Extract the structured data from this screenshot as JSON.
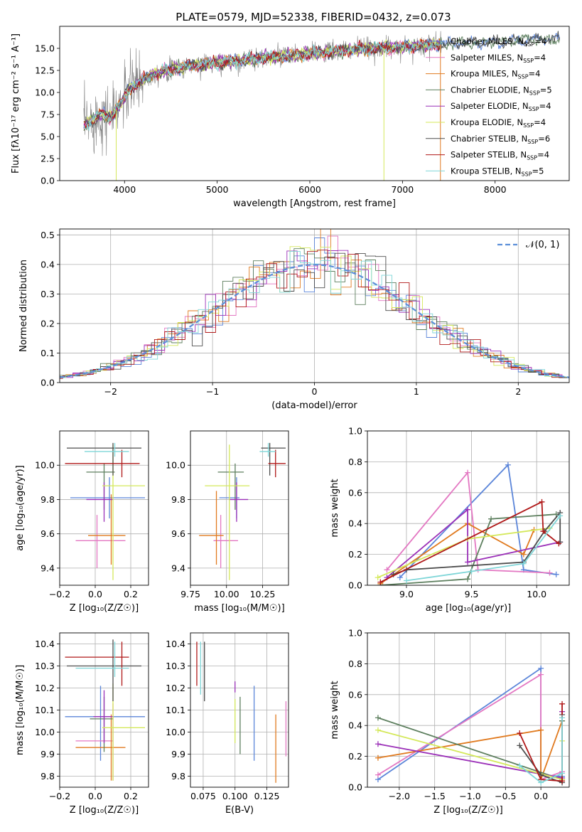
{
  "figure": {
    "title": "PLATE=0579, MJD=52338, FIBERID=0432, z=0.073"
  },
  "colors": {
    "Chabrier MILES": "#5b85d9",
    "Salpeter MILES": "#e377c2",
    "Kroupa MILES": "#e07a1f",
    "Chabrier ELODIE": "#5d7f5e",
    "Salpeter ELODIE": "#9b30b8",
    "Kroupa ELODIE": "#d4e85a",
    "Chabrier STELIB": "#4d4d4d",
    "Salpeter STELIB": "#b01818",
    "Kroupa STELIB": "#7fd6d8",
    "normal": "#5b8fd9",
    "data": "#808080"
  },
  "chart_data": [
    {
      "id": "spectrum",
      "type": "line",
      "title": "PLATE=0579, MJD=52338, FIBERID=0432, z=0.073",
      "xlabel": "wavelength [Angstrom, rest frame]",
      "ylabel": "Flux [fλ10⁻¹⁷ erg cm⁻² s⁻¹ A⁻¹]",
      "xlim": [
        3300,
        8800
      ],
      "ylim": [
        0,
        17.5
      ],
      "xticks": [
        "4000",
        "5000",
        "6000",
        "7000",
        "8000"
      ],
      "yticks": [
        "0.0",
        "2.5",
        "5.0",
        "7.5",
        "10.0",
        "12.5",
        "15.0"
      ],
      "legend_position": "right",
      "series": [
        {
          "name": "Chabrier MILES, N_SSP=4",
          "key": "Chabrier MILES"
        },
        {
          "name": "Salpeter MILES, N_SSP=4",
          "key": "Salpeter MILES"
        },
        {
          "name": "Kroupa MILES, N_SSP=4",
          "key": "Kroupa MILES"
        },
        {
          "name": "Chabrier ELODIE, N_SSP=5",
          "key": "Chabrier ELODIE"
        },
        {
          "name": "Salpeter ELODIE, N_SSP=4",
          "key": "Salpeter ELODIE"
        },
        {
          "name": "Kroupa ELODIE, N_SSP=4",
          "key": "Kroupa ELODIE"
        },
        {
          "name": "Chabrier STELIB, N_SSP=6",
          "key": "Chabrier STELIB"
        },
        {
          "name": "Salpeter STELIB, N_SSP=4",
          "key": "Salpeter STELIB"
        },
        {
          "name": "Kroupa STELIB, N_SSP=5",
          "key": "Kroupa STELIB"
        }
      ],
      "continuum": {
        "x": [
          3550,
          3650,
          3750,
          3850,
          3950,
          4050,
          4150,
          4300,
          4500,
          4700,
          4900,
          5100,
          5300,
          5500,
          5700,
          5900,
          6100,
          6300,
          6500,
          6700,
          6900,
          7100,
          7300,
          7500,
          7700,
          7900,
          8100,
          8300,
          8500,
          8700
        ],
        "y": [
          6.2,
          6.8,
          7.6,
          7.2,
          8.6,
          10.4,
          11.2,
          12.0,
          12.6,
          13.0,
          13.3,
          13.5,
          13.7,
          13.9,
          14.1,
          14.3,
          14.5,
          14.7,
          14.9,
          15.0,
          15.1,
          15.2,
          15.4,
          15.5,
          15.6,
          15.7,
          15.8,
          15.9,
          16.0,
          16.1
        ]
      }
    },
    {
      "id": "residuals",
      "type": "histogram",
      "xlabel": "(data-model)/error",
      "ylabel": "Normed distribution",
      "xlim": [
        -2.5,
        2.5
      ],
      "ylim": [
        0,
        0.52
      ],
      "xticks": [
        "−2",
        "−1",
        "0",
        "1",
        "2"
      ],
      "yticks": [
        "0.0",
        "0.1",
        "0.2",
        "0.3",
        "0.4",
        "0.5"
      ],
      "legend": "𝒩(0, 1)",
      "legend_position": "top-right",
      "reference_curve": "standard normal N(0,1)"
    },
    {
      "id": "age-vs-Z",
      "type": "errorbar",
      "xlabel": "Z [log₁₀(Z/Z☉)]",
      "ylabel": "age  [log₁₀(age/yr)]",
      "xlim": [
        -0.2,
        0.3
      ],
      "ylim": [
        9.3,
        10.2
      ],
      "xticks": [
        "−0.2",
        "0.0",
        "0.2"
      ],
      "yticks": [
        "9.4",
        "9.6",
        "9.8",
        "10.0"
      ],
      "points": [
        {
          "key": "Chabrier MILES",
          "x": 0.08,
          "xerr": [
            0.22,
            0.2
          ],
          "y": 9.81,
          "yerr": [
            0.12,
            0.12
          ]
        },
        {
          "key": "Salpeter MILES",
          "x": 0.01,
          "xerr": [
            0.12,
            0.16
          ],
          "y": 9.56,
          "yerr": [
            0.16,
            0.15
          ]
        },
        {
          "key": "Kroupa MILES",
          "x": 0.09,
          "xerr": [
            0.13,
            0.08
          ],
          "y": 9.59,
          "yerr": [
            0.17,
            0.24
          ]
        },
        {
          "key": "Chabrier ELODIE",
          "x": 0.05,
          "xerr": [
            0.1,
            0.06
          ],
          "y": 9.96,
          "yerr": [
            0.22,
            0.05
          ]
        },
        {
          "key": "Salpeter ELODIE",
          "x": 0.05,
          "xerr": [
            0.1,
            0.05
          ],
          "y": 9.8,
          "yerr": [
            0.13,
            0.1
          ]
        },
        {
          "key": "Kroupa ELODIE",
          "x": 0.1,
          "xerr": [
            0.06,
            0.18
          ],
          "y": 9.88,
          "yerr": [
            0.55,
            0.24
          ]
        },
        {
          "key": "Chabrier STELIB",
          "x": 0.1,
          "xerr": [
            0.26,
            0.16
          ],
          "y": 10.1,
          "yerr": [
            0.16,
            0.03
          ]
        },
        {
          "key": "Salpeter STELIB",
          "x": 0.15,
          "xerr": [
            0.32,
            0.1
          ],
          "y": 10.01,
          "yerr": [
            0.08,
            0.08
          ]
        },
        {
          "key": "Kroupa STELIB",
          "x": 0.11,
          "xerr": [
            0.17,
            0.08
          ],
          "y": 10.08,
          "yerr": [
            0.03,
            0.05
          ]
        }
      ]
    },
    {
      "id": "age-vs-mass",
      "type": "errorbar",
      "xlabel": "mass [log₁₀(M/M☉)]",
      "xlim": [
        9.75,
        10.43
      ],
      "ylim": [
        9.3,
        10.2
      ],
      "xticks": [
        "9.75",
        "10.00",
        "10.25"
      ],
      "yticks": [
        "9.4",
        "9.6",
        "9.8",
        "10.0"
      ],
      "points": [
        {
          "key": "Chabrier MILES",
          "x": 10.07,
          "xerr": [
            0.12,
            0.02
          ],
          "y": 9.81,
          "yerr": [
            0.12,
            0.12
          ]
        },
        {
          "key": "Salpeter MILES",
          "x": 9.96,
          "xerr": [
            0.05,
            0.12
          ],
          "y": 9.56,
          "yerr": [
            0.16,
            0.15
          ]
        },
        {
          "key": "Kroupa MILES",
          "x": 9.93,
          "xerr": [
            0.12,
            0.05
          ],
          "y": 9.59,
          "yerr": [
            0.17,
            0.26
          ]
        },
        {
          "key": "Chabrier ELODIE",
          "x": 10.06,
          "xerr": [
            0.12,
            0.06
          ],
          "y": 9.96,
          "yerr": [
            0.22,
            0.05
          ]
        },
        {
          "key": "Salpeter ELODIE",
          "x": 10.07,
          "xerr": [
            0.05,
            0.08
          ],
          "y": 9.8,
          "yerr": [
            0.13,
            0.1
          ]
        },
        {
          "key": "Kroupa ELODIE",
          "x": 10.02,
          "xerr": [
            0.17,
            0.14
          ],
          "y": 9.88,
          "yerr": [
            0.55,
            0.24
          ]
        },
        {
          "key": "Chabrier STELIB",
          "x": 10.3,
          "xerr": [
            0.06,
            0.11
          ],
          "y": 10.1,
          "yerr": [
            0.16,
            0.03
          ]
        },
        {
          "key": "Salpeter STELIB",
          "x": 10.34,
          "xerr": [
            0.05,
            0.07
          ],
          "y": 10.01,
          "yerr": [
            0.08,
            0.08
          ]
        },
        {
          "key": "Kroupa STELIB",
          "x": 10.29,
          "xerr": [
            0.06,
            0.05
          ],
          "y": 10.08,
          "yerr": [
            0.03,
            0.05
          ]
        }
      ]
    },
    {
      "id": "weight-vs-age",
      "type": "line",
      "xlabel": "age  [log₁₀(age/yr)]",
      "ylabel": "mass weight",
      "xlim": [
        8.7,
        10.25
      ],
      "ylim": [
        0,
        1
      ],
      "xticks": [
        "9.0",
        "9.5",
        "10.0"
      ],
      "yticks": [
        "0.0",
        "0.2",
        "0.4",
        "0.6",
        "0.8",
        "1.0"
      ],
      "series": [
        {
          "key": "Chabrier MILES",
          "x": [
            8.95,
            9.78,
            9.9,
            10.15
          ],
          "y": [
            0.05,
            0.78,
            0.1,
            0.07
          ]
        },
        {
          "key": "Salpeter MILES",
          "x": [
            8.85,
            9.47,
            9.55,
            10.1
          ],
          "y": [
            0.1,
            0.73,
            0.1,
            0.08
          ]
        },
        {
          "key": "Kroupa MILES",
          "x": [
            8.8,
            9.47,
            9.9,
            9.98
          ],
          "y": [
            0.01,
            0.4,
            0.2,
            0.36
          ]
        },
        {
          "key": "Chabrier ELODIE",
          "x": [
            8.8,
            9.47,
            9.65,
            10.15
          ],
          "y": [
            0.0,
            0.04,
            0.43,
            0.46
          ]
        },
        {
          "key": "Salpeter ELODIE",
          "x": [
            8.85,
            9.47,
            9.47,
            10.18
          ],
          "y": [
            0.05,
            0.49,
            0.15,
            0.28
          ]
        },
        {
          "key": "Kroupa ELODIE",
          "x": [
            8.78,
            9.47,
            10.1
          ],
          "y": [
            0.05,
            0.3,
            0.37
          ]
        },
        {
          "key": "Chabrier STELIB",
          "x": [
            8.9,
            9.0,
            9.9,
            10.06,
            10.18,
            10.18
          ],
          "y": [
            0.07,
            0.1,
            0.15,
            0.35,
            0.47,
            0.28
          ]
        },
        {
          "key": "Salpeter STELIB",
          "x": [
            8.8,
            10.04,
            10.05,
            10.17
          ],
          "y": [
            0.02,
            0.54,
            0.35,
            0.27
          ]
        },
        {
          "key": "Kroupa STELIB",
          "x": [
            9.0,
            9.5,
            9.9,
            10.18
          ],
          "y": [
            0.03,
            0.09,
            0.14,
            0.45
          ]
        }
      ]
    },
    {
      "id": "mass-vs-Z",
      "type": "errorbar",
      "xlabel": "Z [log₁₀(Z/Z☉)]",
      "ylabel": "mass [log₁₀(M/M☉)]",
      "xlim": [
        -0.2,
        0.3
      ],
      "ylim": [
        9.75,
        10.45
      ],
      "xticks": [
        "−0.2",
        "0.0",
        "0.2"
      ],
      "yticks": [
        "9.8",
        "9.9",
        "10.0",
        "10.1",
        "10.2",
        "10.3",
        "10.4"
      ],
      "points": [
        {
          "key": "Chabrier MILES",
          "x": 0.03,
          "xerr": [
            0.2,
            0.25
          ],
          "y": 10.07,
          "yerr": [
            0.2,
            0.14
          ]
        },
        {
          "key": "Salpeter MILES",
          "x": 0.1,
          "xerr": [
            0.21,
            0.0
          ],
          "y": 9.96,
          "yerr": [
            0.18,
            0.17
          ]
        },
        {
          "key": "Kroupa MILES",
          "x": 0.09,
          "xerr": [
            0.2,
            0.08
          ],
          "y": 9.93,
          "yerr": [
            0.15,
            0.15
          ]
        },
        {
          "key": "Chabrier ELODIE",
          "x": 0.05,
          "xerr": [
            0.08,
            0.05
          ],
          "y": 10.06,
          "yerr": [
            0.15,
            0.1
          ]
        },
        {
          "key": "Salpeter ELODIE",
          "x": 0.05,
          "xerr": [
            0.06,
            0.05
          ],
          "y": 10.07,
          "yerr": [
            0.12,
            0.12
          ]
        },
        {
          "key": "Kroupa ELODIE",
          "x": 0.1,
          "xerr": [
            0.06,
            0.18
          ],
          "y": 10.02,
          "yerr": [
            0.24,
            0.2
          ]
        },
        {
          "key": "Chabrier STELIB",
          "x": 0.1,
          "xerr": [
            0.26,
            0.16
          ],
          "y": 10.3,
          "yerr": [
            0.16,
            0.12
          ]
        },
        {
          "key": "Salpeter STELIB",
          "x": 0.15,
          "xerr": [
            0.32,
            0.04
          ],
          "y": 10.34,
          "yerr": [
            0.13,
            0.07
          ]
        },
        {
          "key": "Kroupa STELIB",
          "x": 0.11,
          "xerr": [
            0.22,
            0.08
          ],
          "y": 10.29,
          "yerr": [
            0.04,
            0.12
          ]
        }
      ]
    },
    {
      "id": "mass-vs-EBV",
      "type": "errorbar",
      "xlabel": "E(B-V)",
      "xlim": [
        0.065,
        0.142
      ],
      "ylim": [
        9.75,
        10.45
      ],
      "xticks": [
        "0.075",
        "0.100",
        "0.125"
      ],
      "yticks": [
        "9.8",
        "9.9",
        "10.0",
        "10.1",
        "10.2",
        "10.3",
        "10.4"
      ],
      "points": [
        {
          "key": "Chabrier MILES",
          "x": 0.115,
          "y": 10.07,
          "yerr": [
            0.2,
            0.14
          ]
        },
        {
          "key": "Salpeter MILES",
          "x": 0.14,
          "y": 10.0,
          "yerr": [
            0.11,
            0.14
          ]
        },
        {
          "key": "Kroupa MILES",
          "x": 0.132,
          "y": 9.92,
          "yerr": [
            0.15,
            0.16
          ]
        },
        {
          "key": "Chabrier ELODIE",
          "x": 0.104,
          "y": 10.03,
          "yerr": [
            0.13,
            0.13
          ]
        },
        {
          "key": "Salpeter ELODIE",
          "x": 0.1,
          "y": 10.18,
          "yerr": [
            0.0,
            0.05
          ]
        },
        {
          "key": "Kroupa ELODIE",
          "x": 0.1,
          "y": 10.05,
          "yerr": [
            0.1,
            0.1
          ]
        },
        {
          "key": "Chabrier STELIB",
          "x": 0.076,
          "y": 10.27,
          "yerr": [
            0.13,
            0.14
          ]
        },
        {
          "key": "Salpeter STELIB",
          "x": 0.07,
          "y": 10.31,
          "yerr": [
            0.1,
            0.1
          ]
        },
        {
          "key": "Kroupa STELIB",
          "x": 0.073,
          "y": 10.29,
          "yerr": [
            0.12,
            0.12
          ]
        }
      ]
    },
    {
      "id": "weight-vs-Z",
      "type": "line",
      "xlabel": "Z [log₁₀(Z/Z☉)]",
      "ylabel": "mass weight",
      "xlim": [
        -2.45,
        0.4
      ],
      "ylim": [
        0,
        1
      ],
      "xticks": [
        "−2.0",
        "−1.5",
        "−1.0",
        "−0.5",
        "0.0"
      ],
      "yticks": [
        "0.0",
        "0.2",
        "0.4",
        "0.6",
        "0.8",
        "1.0"
      ],
      "series": [
        {
          "key": "Chabrier MILES",
          "x": [
            -2.3,
            0.0,
            0.0,
            0.3
          ],
          "y": [
            0.05,
            0.77,
            0.08,
            0.07
          ]
        },
        {
          "key": "Salpeter MILES",
          "x": [
            -2.3,
            0.0,
            0.0,
            0.3
          ],
          "y": [
            0.08,
            0.73,
            0.05,
            0.1
          ]
        },
        {
          "key": "Kroupa MILES",
          "x": [
            -2.3,
            0.0,
            0.0,
            0.3
          ],
          "y": [
            0.19,
            0.37,
            0.05,
            0.43
          ]
        },
        {
          "key": "Chabrier ELODIE",
          "x": [
            -2.3,
            0.3,
            0.3
          ],
          "y": [
            0.45,
            0.05,
            0.43
          ]
        },
        {
          "key": "Salpeter ELODIE",
          "x": [
            -2.3,
            0.3,
            0.3
          ],
          "y": [
            0.28,
            0.06,
            0.49
          ]
        },
        {
          "key": "Kroupa ELODIE",
          "x": [
            -2.3,
            0.3,
            0.3
          ],
          "y": [
            0.37,
            0.05,
            0.3
          ]
        },
        {
          "key": "Chabrier STELIB",
          "x": [
            -0.3,
            0.0,
            0.3,
            0.3
          ],
          "y": [
            0.27,
            0.08,
            0.03,
            0.47
          ]
        },
        {
          "key": "Salpeter STELIB",
          "x": [
            -0.3,
            0.0,
            0.3,
            0.3
          ],
          "y": [
            0.35,
            0.05,
            0.04,
            0.54
          ]
        },
        {
          "key": "Kroupa STELIB",
          "x": [
            -0.3,
            0.0,
            0.3,
            0.3
          ],
          "y": [
            0.14,
            0.03,
            0.09,
            0.45
          ]
        }
      ]
    }
  ]
}
